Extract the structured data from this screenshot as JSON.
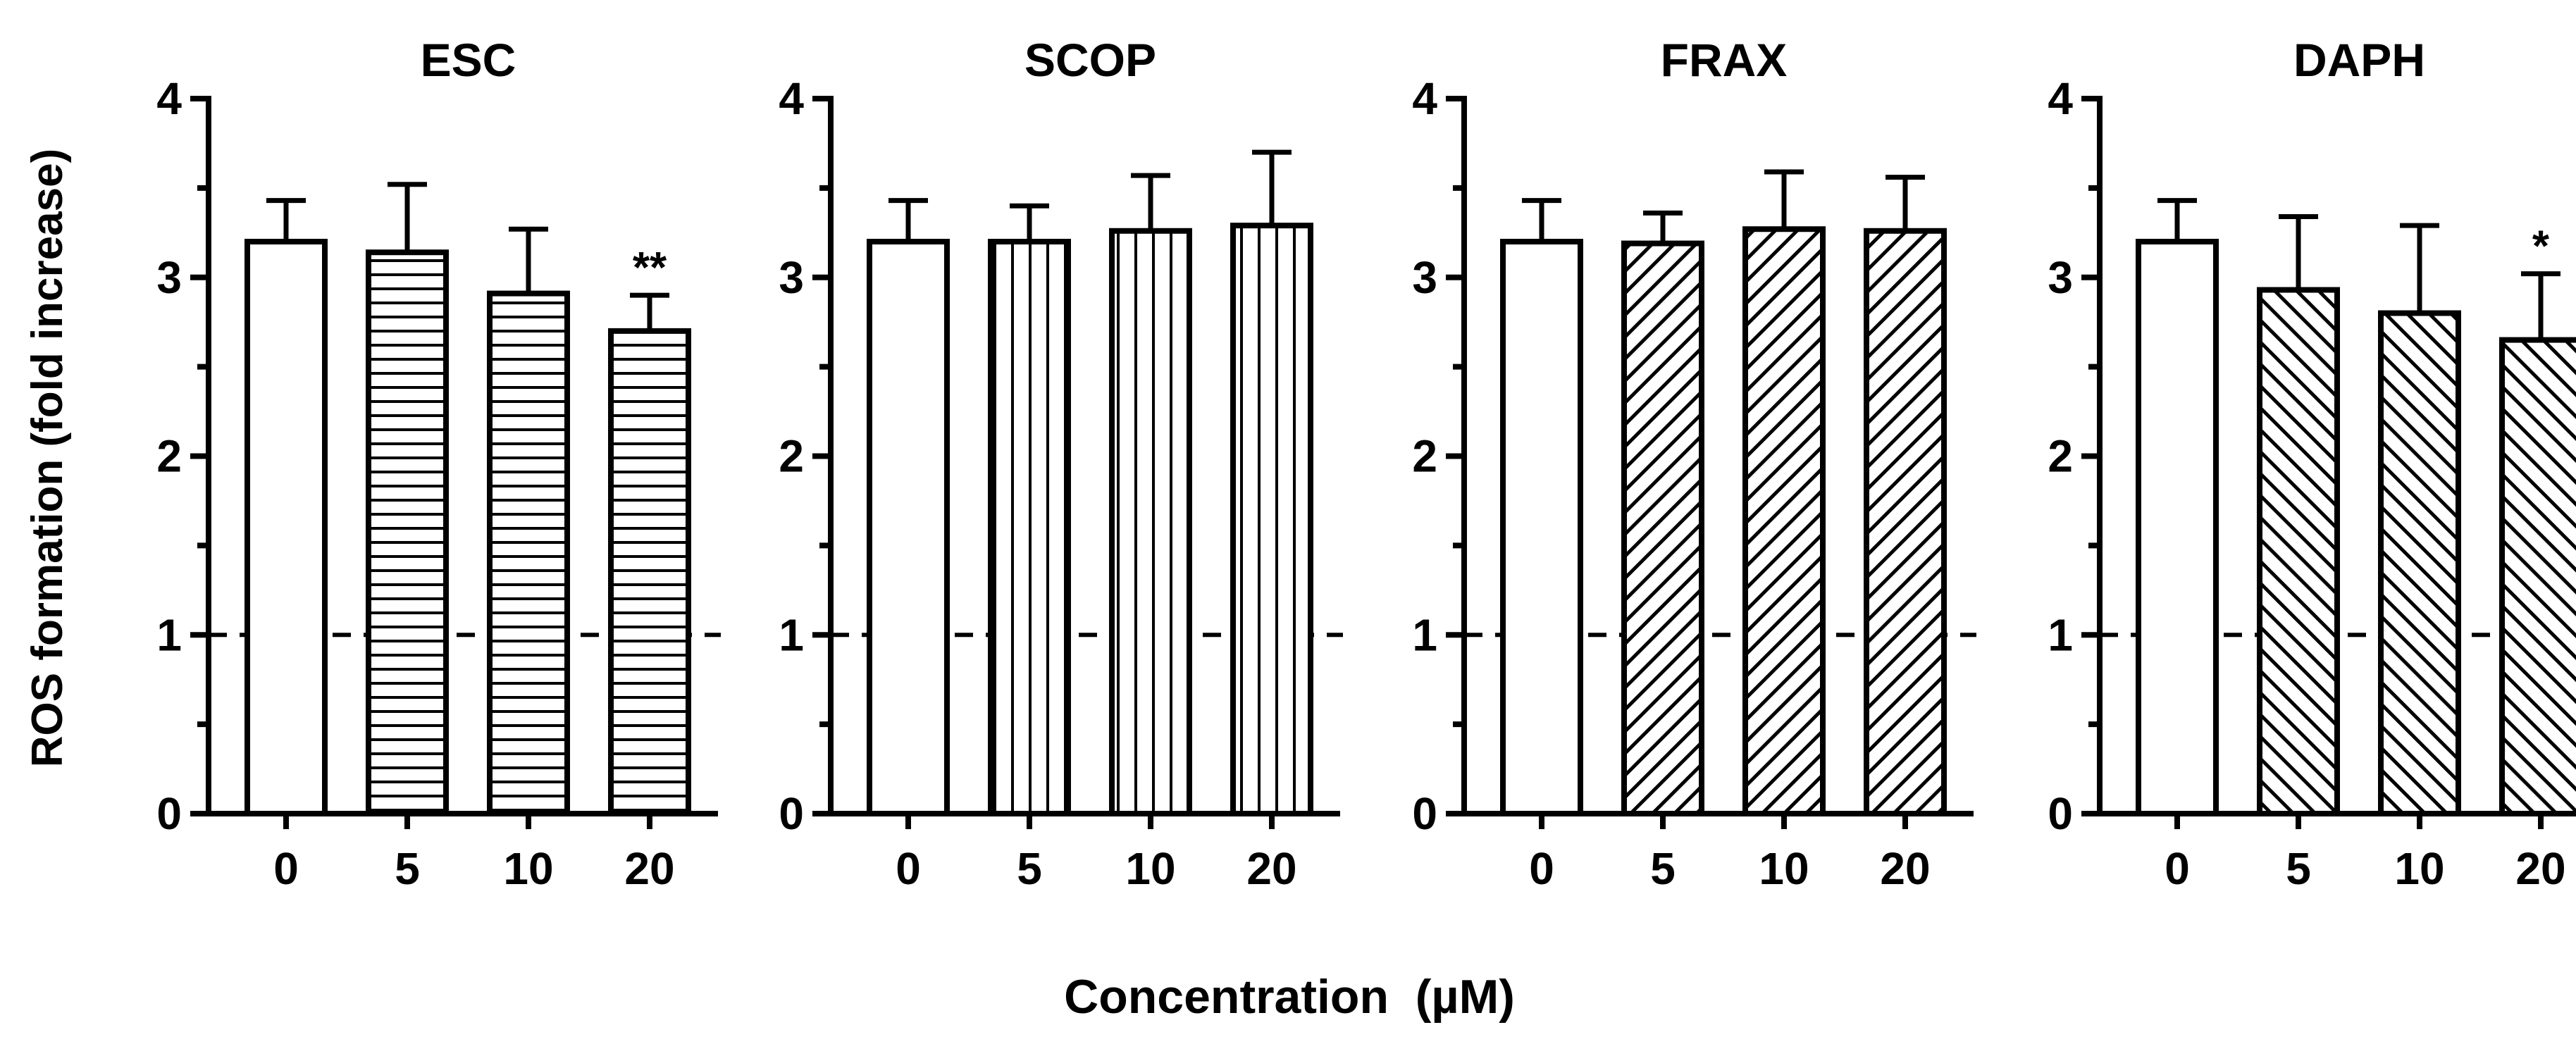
{
  "figure": {
    "ylabel": "ROS formation (fold increase)",
    "xlabel": "Concentration  (µM)"
  },
  "chart_data": [
    {
      "type": "bar",
      "title": "ESC",
      "categories": [
        "0",
        "5",
        "10",
        "20"
      ],
      "values": [
        3.2,
        3.14,
        2.91,
        2.7
      ],
      "errors": [
        0.23,
        0.38,
        0.36,
        0.2
      ],
      "patterns": [
        "none",
        "horizontal",
        "horizontal",
        "horizontal"
      ],
      "annotations": [
        "",
        "",
        "",
        "**"
      ],
      "ylim": [
        0,
        4
      ],
      "yticks": [
        "0",
        "1",
        "2",
        "3",
        "4"
      ],
      "reference_line": 1
    },
    {
      "type": "bar",
      "title": "SCOP",
      "categories": [
        "0",
        "5",
        "10",
        "20"
      ],
      "values": [
        3.2,
        3.2,
        3.26,
        3.29
      ],
      "errors": [
        0.23,
        0.2,
        0.31,
        0.41
      ],
      "patterns": [
        "none",
        "vertical",
        "vertical",
        "vertical"
      ],
      "annotations": [
        "",
        "",
        "",
        ""
      ],
      "ylim": [
        0,
        4
      ],
      "yticks": [
        "0",
        "1",
        "2",
        "3",
        "4"
      ],
      "reference_line": 1
    },
    {
      "type": "bar",
      "title": "FRAX",
      "categories": [
        "0",
        "5",
        "10",
        "20"
      ],
      "values": [
        3.2,
        3.19,
        3.27,
        3.26
      ],
      "errors": [
        0.23,
        0.17,
        0.32,
        0.3
      ],
      "patterns": [
        "none",
        "diagonal-right",
        "diagonal-right",
        "diagonal-right"
      ],
      "annotations": [
        "",
        "",
        "",
        ""
      ],
      "ylim": [
        0,
        4
      ],
      "yticks": [
        "0",
        "1",
        "2",
        "3",
        "4"
      ],
      "reference_line": 1
    },
    {
      "type": "bar",
      "title": "DAPH",
      "categories": [
        "0",
        "5",
        "10",
        "20"
      ],
      "values": [
        3.2,
        2.93,
        2.8,
        2.65
      ],
      "errors": [
        0.23,
        0.41,
        0.49,
        0.37
      ],
      "patterns": [
        "none",
        "diagonal-left",
        "diagonal-left",
        "diagonal-left"
      ],
      "annotations": [
        "",
        "",
        "",
        "*"
      ],
      "ylim": [
        0,
        4
      ],
      "yticks": [
        "0",
        "1",
        "2",
        "3",
        "4"
      ],
      "reference_line": 1
    }
  ]
}
